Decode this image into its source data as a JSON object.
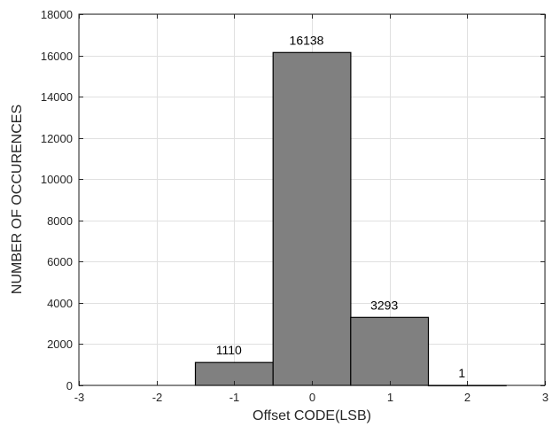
{
  "chart_data": {
    "type": "bar",
    "title": "",
    "xlabel": "Offset CODE(LSB)",
    "ylabel": "NUMBER OF OCCURENCES",
    "xlim": [
      -3,
      3
    ],
    "ylim": [
      0,
      18000
    ],
    "xticks": [
      -3,
      -2,
      -1,
      0,
      1,
      2,
      3
    ],
    "yticks": [
      0,
      2000,
      4000,
      6000,
      8000,
      10000,
      12000,
      14000,
      16000,
      18000
    ],
    "categories": [
      -1,
      0,
      1,
      2
    ],
    "values": [
      1110,
      16138,
      3293,
      1
    ],
    "data_labels": [
      "1110",
      "16138",
      "3293",
      "1"
    ],
    "bin_width": 1,
    "grid": true,
    "colors": {
      "bar_fill": "#808080",
      "bar_edge": "#000000",
      "grid": "#e0e0e0",
      "axis": "#262626"
    }
  }
}
